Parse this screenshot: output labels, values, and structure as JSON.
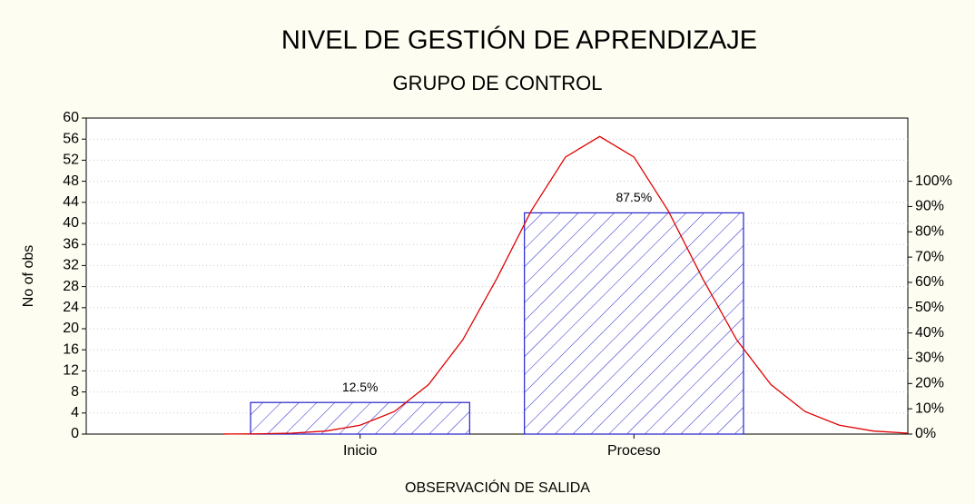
{
  "chart_data": {
    "type": "bar",
    "title": "NIVEL DE GESTIÓN DE APRENDIZAJE",
    "subtitle": "GRUPO DE CONTROL",
    "xlabel": "OBSERVACIÓN DE SALIDA",
    "ylabel": "No of obs",
    "categories": [
      "Inicio",
      "Proceso"
    ],
    "category_x": [
      1,
      2
    ],
    "values": [
      6,
      42
    ],
    "percentages": [
      12.5,
      87.5
    ],
    "percentage_labels": [
      "12.5%",
      "87.5%"
    ],
    "color": "#2222cc",
    "xlim": [
      0,
      3
    ],
    "ylim": [
      0,
      60
    ],
    "yticks": [
      0,
      4,
      8,
      12,
      16,
      20,
      24,
      28,
      32,
      36,
      40,
      44,
      48,
      52,
      56,
      60
    ],
    "y2lim": [
      0,
      125
    ],
    "y2ticks": [
      {
        "value": 0,
        "label": "0%"
      },
      {
        "value": 10,
        "label": "10%"
      },
      {
        "value": 20,
        "label": "20%"
      },
      {
        "value": 30,
        "label": "30%"
      },
      {
        "value": 40,
        "label": "40%"
      },
      {
        "value": 50,
        "label": "50%"
      },
      {
        "value": 60,
        "label": "60%"
      },
      {
        "value": 70,
        "label": "70%"
      },
      {
        "value": 80,
        "label": "80%"
      },
      {
        "value": 90,
        "label": "90%"
      },
      {
        "value": 100,
        "label": "100%"
      }
    ],
    "grid": true,
    "curve": {
      "color": "#e00000",
      "x": [
        0.5,
        0.625,
        0.75,
        0.875,
        1.0,
        1.125,
        1.25,
        1.375,
        1.5,
        1.625,
        1.75,
        1.875,
        2.0,
        2.125,
        2.25,
        2.375,
        2.5,
        2.625,
        2.75,
        2.875,
        3.0
      ],
      "values": [
        0.01,
        0.04,
        0.17,
        0.57,
        1.68,
        4.27,
        9.4,
        17.9,
        29.6,
        42.4,
        52.6,
        56.5,
        52.6,
        42.4,
        29.6,
        17.9,
        9.4,
        4.27,
        1.68,
        0.57,
        0.17
      ]
    }
  }
}
